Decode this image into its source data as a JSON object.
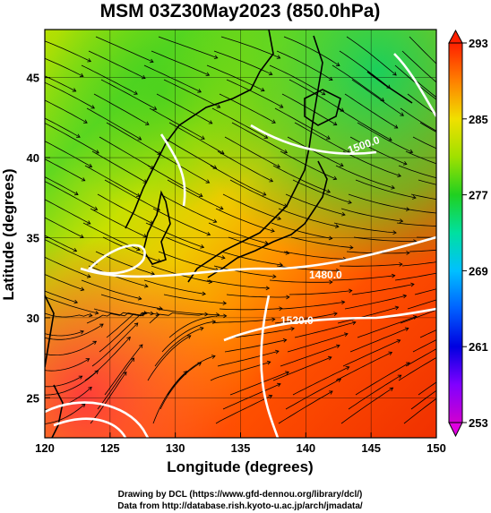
{
  "title": "MSM 03Z30May2023 (850.0hPa)",
  "axes": {
    "xlabel": "Longitude (degrees)",
    "ylabel": "Latitude  (degrees)",
    "xticks": [
      "120",
      "125",
      "130",
      "135",
      "140",
      "145",
      "150"
    ],
    "yticks": [
      "25",
      "30",
      "35",
      "40",
      "45"
    ],
    "xlim": [
      120,
      150
    ],
    "ylim": [
      22.5,
      48
    ]
  },
  "colorbar": {
    "ticks": [
      "293",
      "285",
      "277",
      "269",
      "261",
      "253"
    ],
    "range": [
      253,
      293
    ],
    "colors": [
      "#c000c0",
      "#3030ff",
      "#00b0ff",
      "#00e0a0",
      "#20d020",
      "#a0e000",
      "#f0e000",
      "#ff9000",
      "#ff3000",
      "#e01000"
    ]
  },
  "contours": {
    "labels": [
      "1480.0",
      "1520.0",
      "1500.0"
    ]
  },
  "credits": {
    "line1": "Drawing by DCL (https://www.gfd-dennou.org/library/dcl/)",
    "line2": "Data from http://database.rish.kyoto-u.ac.jp/arch/jmadata/"
  }
}
